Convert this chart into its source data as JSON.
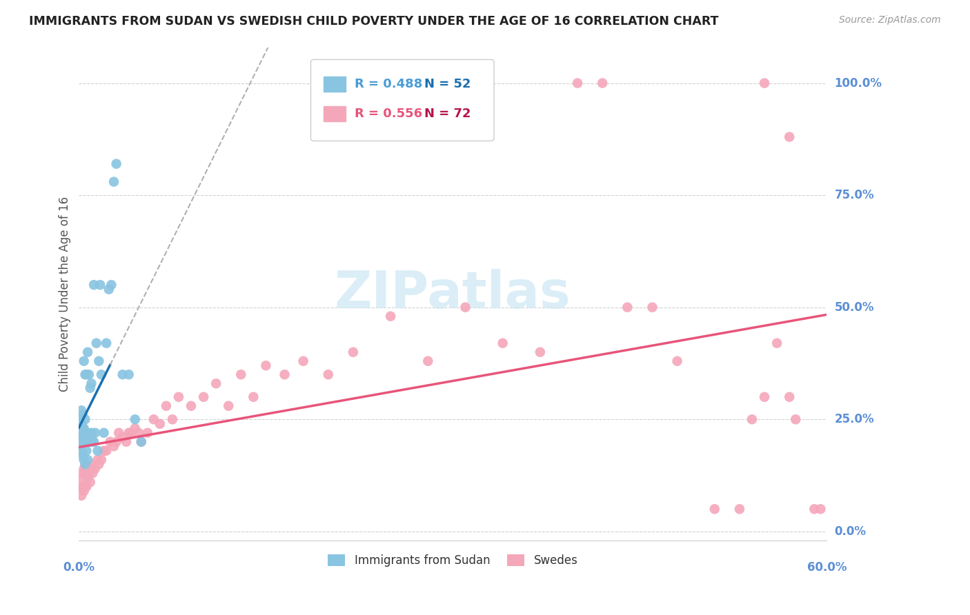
{
  "title": "IMMIGRANTS FROM SUDAN VS SWEDISH CHILD POVERTY UNDER THE AGE OF 16 CORRELATION CHART",
  "source": "Source: ZipAtlas.com",
  "ylabel": "Child Poverty Under the Age of 16",
  "yticks_labels": [
    "0.0%",
    "25.0%",
    "50.0%",
    "75.0%",
    "100.0%"
  ],
  "ytick_vals": [
    0.0,
    0.25,
    0.5,
    0.75,
    1.0
  ],
  "xlim": [
    0.0,
    0.6
  ],
  "ylim": [
    -0.02,
    1.08
  ],
  "legend_blue_r": "R = 0.488",
  "legend_blue_n": "N = 52",
  "legend_pink_r": "R = 0.556",
  "legend_pink_n": "N = 72",
  "legend_blue_label": "Immigrants from Sudan",
  "legend_pink_label": "Swedes",
  "color_blue": "#89c4e1",
  "color_pink": "#f4a7b9",
  "color_blue_line": "#1a6faf",
  "color_pink_line": "#e8547a",
  "color_axis_text": "#5b8fd4",
  "watermark_color": "#cde8f5",
  "background_color": "#ffffff",
  "blue_x": [
    0.001,
    0.001,
    0.001,
    0.001,
    0.002,
    0.002,
    0.002,
    0.002,
    0.002,
    0.003,
    0.003,
    0.003,
    0.003,
    0.004,
    0.004,
    0.004,
    0.004,
    0.005,
    0.005,
    0.005,
    0.005,
    0.006,
    0.006,
    0.006,
    0.007,
    0.007,
    0.007,
    0.008,
    0.008,
    0.009,
    0.009,
    0.01,
    0.01,
    0.011,
    0.012,
    0.012,
    0.013,
    0.014,
    0.015,
    0.016,
    0.017,
    0.018,
    0.02,
    0.022,
    0.024,
    0.026,
    0.028,
    0.03,
    0.035,
    0.04,
    0.045,
    0.05
  ],
  "blue_y": [
    0.18,
    0.2,
    0.22,
    0.25,
    0.18,
    0.2,
    0.22,
    0.24,
    0.27,
    0.17,
    0.2,
    0.23,
    0.26,
    0.16,
    0.2,
    0.23,
    0.38,
    0.15,
    0.2,
    0.25,
    0.35,
    0.18,
    0.22,
    0.35,
    0.16,
    0.22,
    0.4,
    0.2,
    0.35,
    0.2,
    0.32,
    0.22,
    0.33,
    0.2,
    0.2,
    0.55,
    0.22,
    0.42,
    0.18,
    0.38,
    0.55,
    0.35,
    0.22,
    0.42,
    0.54,
    0.55,
    0.78,
    0.82,
    0.35,
    0.35,
    0.25,
    0.2
  ],
  "pink_x": [
    0.001,
    0.002,
    0.002,
    0.003,
    0.003,
    0.004,
    0.004,
    0.005,
    0.005,
    0.006,
    0.006,
    0.007,
    0.008,
    0.009,
    0.01,
    0.011,
    0.012,
    0.013,
    0.015,
    0.016,
    0.018,
    0.02,
    0.022,
    0.025,
    0.028,
    0.03,
    0.032,
    0.035,
    0.038,
    0.04,
    0.042,
    0.045,
    0.048,
    0.05,
    0.055,
    0.06,
    0.065,
    0.07,
    0.075,
    0.08,
    0.09,
    0.1,
    0.11,
    0.12,
    0.13,
    0.14,
    0.15,
    0.165,
    0.18,
    0.2,
    0.22,
    0.25,
    0.28,
    0.31,
    0.34,
    0.37,
    0.4,
    0.42,
    0.44,
    0.46,
    0.48,
    0.51,
    0.53,
    0.55,
    0.56,
    0.57,
    0.57,
    0.575,
    0.55,
    0.54,
    0.59,
    0.595
  ],
  "pink_y": [
    0.1,
    0.08,
    0.12,
    0.1,
    0.13,
    0.09,
    0.14,
    0.1,
    0.15,
    0.1,
    0.14,
    0.12,
    0.13,
    0.11,
    0.14,
    0.13,
    0.15,
    0.14,
    0.16,
    0.15,
    0.16,
    0.18,
    0.18,
    0.2,
    0.19,
    0.2,
    0.22,
    0.21,
    0.2,
    0.22,
    0.22,
    0.23,
    0.22,
    0.2,
    0.22,
    0.25,
    0.24,
    0.28,
    0.25,
    0.3,
    0.28,
    0.3,
    0.33,
    0.28,
    0.35,
    0.3,
    0.37,
    0.35,
    0.38,
    0.35,
    0.4,
    0.48,
    0.38,
    0.5,
    0.42,
    0.4,
    1.0,
    1.0,
    0.5,
    0.5,
    0.38,
    0.05,
    0.05,
    1.0,
    0.42,
    0.88,
    0.3,
    0.25,
    0.3,
    0.25,
    0.05,
    0.05
  ]
}
